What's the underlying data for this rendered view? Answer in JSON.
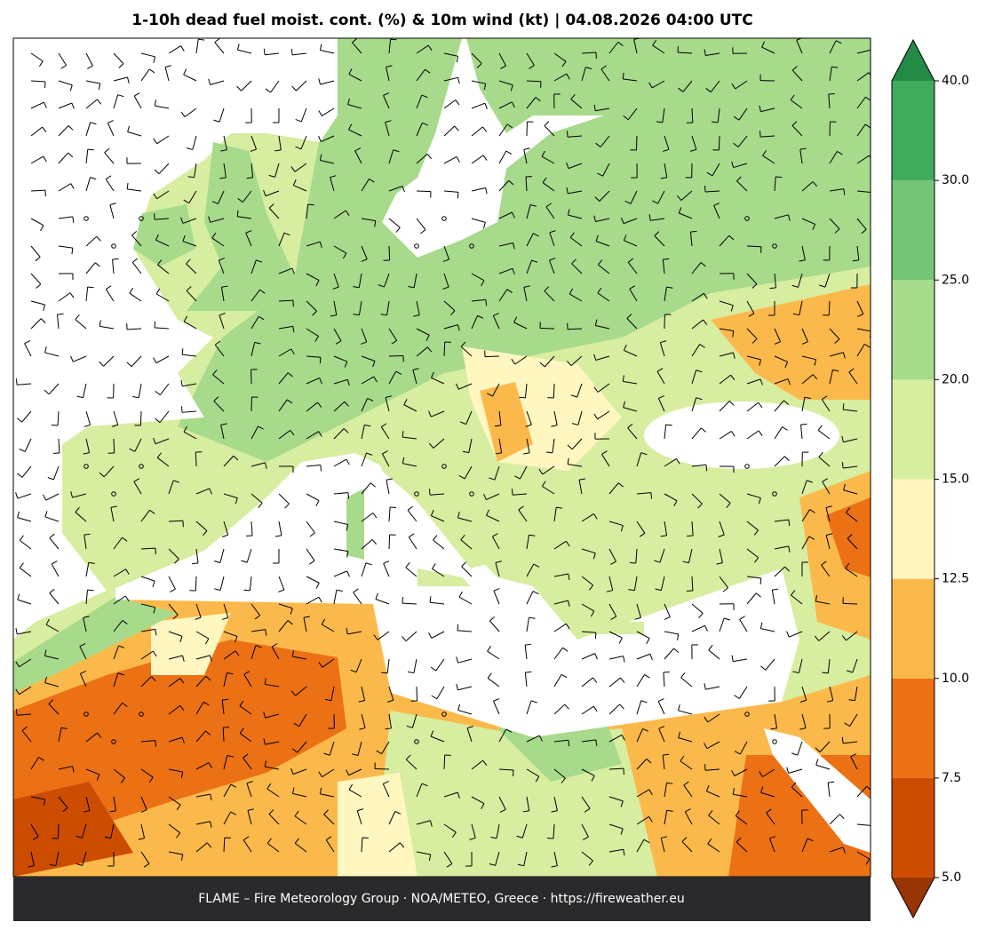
{
  "title": "1-10h dead fuel moist. cont. (%) & 10m wind (kt)  |  04.08.2026 04:00 UTC",
  "footer": "FLAME – Fire Meteorology Group · NOA/METEO, Greece · https://fireweather.eu",
  "colorbar": {
    "ticks": [
      {
        "value": 5,
        "label": "5.0"
      },
      {
        "value": 7.5,
        "label": "7.5"
      },
      {
        "value": 10,
        "label": "10.0"
      },
      {
        "value": 12.5,
        "label": "12.5"
      },
      {
        "value": 15,
        "label": "15.0"
      },
      {
        "value": 20,
        "label": "20.0"
      },
      {
        "value": 25,
        "label": "25.0"
      },
      {
        "value": 30,
        "label": "30.0"
      },
      {
        "value": 40,
        "label": "40.0"
      }
    ],
    "colors": [
      "#cc4c02",
      "#ec7014",
      "#fcb94b",
      "#fff6c0",
      "#d7eda0",
      "#a7da8b",
      "#74c476",
      "#41ab5d"
    ],
    "under_color": "#993404",
    "over_color": "#238b45"
  }
}
